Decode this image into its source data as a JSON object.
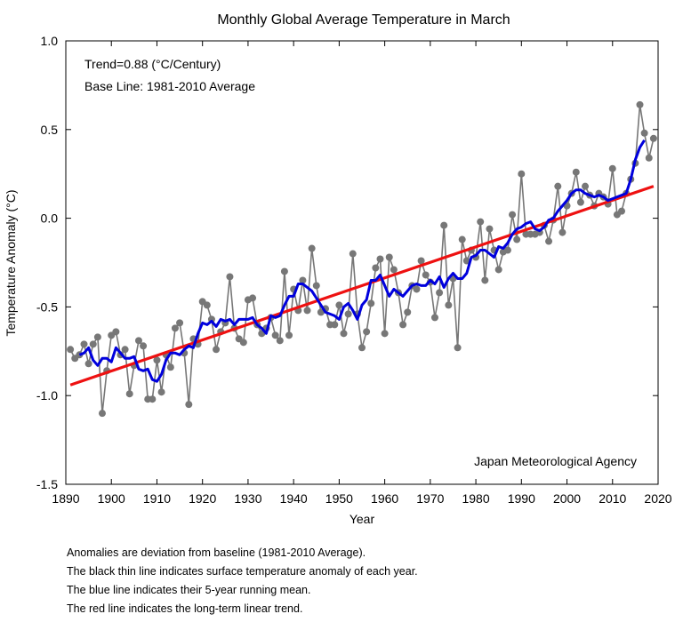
{
  "chart_data": {
    "type": "line",
    "title": "Monthly Global Average Temperature in March",
    "xlabel": "Year",
    "ylabel": "Temperature Anomaly (°C)",
    "xlim": [
      1890,
      2020
    ],
    "ylim": [
      -1.5,
      1.0
    ],
    "x_ticks": [
      "1890",
      "1900",
      "1910",
      "1920",
      "1930",
      "1940",
      "1950",
      "1960",
      "1970",
      "1980",
      "1990",
      "2000",
      "2010",
      "2020"
    ],
    "y_ticks": [
      "-1.5",
      "-1.0",
      "-0.5",
      "0.0",
      "0.5",
      "1.0"
    ],
    "grid": false,
    "annotations": {
      "trend": "Trend=0.88 (°C/Century)",
      "baseline": "Base Line: 1981-2010 Average",
      "source": "Japan Meteorological Agency"
    },
    "colors": {
      "annual": "#777777",
      "mean": "#0000dd",
      "trend": "#ee1111"
    },
    "series": [
      {
        "key": "annual",
        "x": [
          1891,
          1892,
          1893,
          1894,
          1895,
          1896,
          1897,
          1898,
          1899,
          1900,
          1901,
          1902,
          1903,
          1904,
          1905,
          1906,
          1907,
          1908,
          1909,
          1910,
          1911,
          1912,
          1913,
          1914,
          1915,
          1916,
          1917,
          1918,
          1919,
          1920,
          1921,
          1922,
          1923,
          1924,
          1925,
          1926,
          1927,
          1928,
          1929,
          1930,
          1931,
          1932,
          1933,
          1934,
          1935,
          1936,
          1937,
          1938,
          1939,
          1940,
          1941,
          1942,
          1943,
          1944,
          1945,
          1946,
          1947,
          1948,
          1949,
          1950,
          1951,
          1952,
          1953,
          1954,
          1955,
          1956,
          1957,
          1958,
          1959,
          1960,
          1961,
          1962,
          1963,
          1964,
          1965,
          1966,
          1967,
          1968,
          1969,
          1970,
          1971,
          1972,
          1973,
          1974,
          1975,
          1976,
          1977,
          1978,
          1979,
          1980,
          1981,
          1982,
          1983,
          1984,
          1985,
          1986,
          1987,
          1988,
          1989,
          1990,
          1991,
          1992,
          1993,
          1994,
          1995,
          1996,
          1997,
          1998,
          1999,
          2000,
          2001,
          2002,
          2003,
          2004,
          2005,
          2006,
          2007,
          2008,
          2009,
          2010,
          2011,
          2012,
          2013,
          2014,
          2015,
          2016,
          2017,
          2018,
          2019
        ],
        "y": [
          -0.74,
          -0.79,
          -0.77,
          -0.71,
          -0.82,
          -0.71,
          -0.67,
          -1.1,
          -0.86,
          -0.66,
          -0.64,
          -0.77,
          -0.74,
          -0.99,
          -0.83,
          -0.69,
          -0.72,
          -1.02,
          -1.02,
          -0.8,
          -0.98,
          -0.77,
          -0.84,
          -0.62,
          -0.59,
          -0.76,
          -1.05,
          -0.68,
          -0.71,
          -0.47,
          -0.49,
          -0.57,
          -0.74,
          -0.64,
          -0.59,
          -0.33,
          -0.62,
          -0.68,
          -0.7,
          -0.46,
          -0.45,
          -0.6,
          -0.65,
          -0.62,
          -0.56,
          -0.66,
          -0.69,
          -0.3,
          -0.66,
          -0.4,
          -0.52,
          -0.35,
          -0.52,
          -0.17,
          -0.38,
          -0.53,
          -0.51,
          -0.6,
          -0.6,
          -0.49,
          -0.65,
          -0.54,
          -0.2,
          -0.54,
          -0.73,
          -0.64,
          -0.48,
          -0.28,
          -0.23,
          -0.65,
          -0.22,
          -0.29,
          -0.42,
          -0.6,
          -0.53,
          -0.38,
          -0.4,
          -0.24,
          -0.32,
          -0.36,
          -0.56,
          -0.42,
          -0.04,
          -0.49,
          -0.34,
          -0.73,
          -0.12,
          -0.24,
          -0.18,
          -0.22,
          -0.02,
          -0.35,
          -0.06,
          -0.18,
          -0.29,
          -0.19,
          -0.18,
          0.02,
          -0.12,
          0.25,
          -0.09,
          -0.09,
          -0.09,
          -0.08,
          -0.04,
          -0.13,
          -0.01,
          0.18,
          -0.08,
          0.07,
          0.14,
          0.26,
          0.09,
          0.18,
          0.13,
          0.07,
          0.14,
          0.12,
          0.08,
          0.28,
          0.02,
          0.04,
          0.14,
          0.22,
          0.31,
          0.64,
          0.48,
          0.34,
          0.45
        ]
      },
      {
        "key": "mean",
        "x": [
          1893,
          1894,
          1895,
          1896,
          1897,
          1898,
          1899,
          1900,
          1901,
          1902,
          1903,
          1904,
          1905,
          1906,
          1907,
          1908,
          1909,
          1910,
          1911,
          1912,
          1913,
          1914,
          1915,
          1916,
          1917,
          1918,
          1919,
          1920,
          1921,
          1922,
          1923,
          1924,
          1925,
          1926,
          1927,
          1928,
          1929,
          1930,
          1931,
          1932,
          1933,
          1934,
          1935,
          1936,
          1937,
          1938,
          1939,
          1940,
          1941,
          1942,
          1943,
          1944,
          1945,
          1946,
          1947,
          1948,
          1949,
          1950,
          1951,
          1952,
          1953,
          1954,
          1955,
          1956,
          1957,
          1958,
          1959,
          1960,
          1961,
          1962,
          1963,
          1964,
          1965,
          1966,
          1967,
          1968,
          1969,
          1970,
          1971,
          1972,
          1973,
          1974,
          1975,
          1976,
          1977,
          1978,
          1979,
          1980,
          1981,
          1982,
          1983,
          1984,
          1985,
          1986,
          1987,
          1988,
          1989,
          1990,
          1991,
          1992,
          1993,
          1994,
          1995,
          1996,
          1997,
          1998,
          1999,
          2000,
          2001,
          2002,
          2003,
          2004,
          2005,
          2006,
          2007,
          2008,
          2009,
          2010,
          2011,
          2012,
          2013,
          2014,
          2015,
          2016,
          2017
        ],
        "y": [
          -0.77,
          -0.76,
          -0.73,
          -0.8,
          -0.83,
          -0.79,
          -0.79,
          -0.81,
          -0.73,
          -0.76,
          -0.79,
          -0.79,
          -0.78,
          -0.85,
          -0.86,
          -0.85,
          -0.91,
          -0.92,
          -0.88,
          -0.8,
          -0.76,
          -0.76,
          -0.77,
          -0.74,
          -0.72,
          -0.73,
          -0.65,
          -0.59,
          -0.6,
          -0.58,
          -0.61,
          -0.57,
          -0.58,
          -0.57,
          -0.6,
          -0.57,
          -0.57,
          -0.57,
          -0.56,
          -0.6,
          -0.62,
          -0.65,
          -0.55,
          -0.56,
          -0.55,
          -0.49,
          -0.44,
          -0.44,
          -0.37,
          -0.37,
          -0.39,
          -0.41,
          -0.45,
          -0.49,
          -0.53,
          -0.54,
          -0.55,
          -0.57,
          -0.5,
          -0.48,
          -0.52,
          -0.57,
          -0.49,
          -0.46,
          -0.35,
          -0.35,
          -0.32,
          -0.38,
          -0.44,
          -0.4,
          -0.42,
          -0.44,
          -0.41,
          -0.38,
          -0.37,
          -0.38,
          -0.38,
          -0.35,
          -0.37,
          -0.33,
          -0.39,
          -0.34,
          -0.31,
          -0.34,
          -0.34,
          -0.31,
          -0.22,
          -0.21,
          -0.18,
          -0.18,
          -0.2,
          -0.22,
          -0.16,
          -0.17,
          -0.14,
          -0.09,
          -0.06,
          -0.05,
          -0.03,
          -0.02,
          -0.06,
          -0.07,
          -0.05,
          -0.01,
          0.0,
          0.04,
          0.07,
          0.1,
          0.14,
          0.16,
          0.16,
          0.14,
          0.13,
          0.12,
          0.13,
          0.12,
          0.1,
          0.11,
          0.12,
          0.13,
          0.14,
          0.22,
          0.33,
          0.4,
          0.44
        ]
      }
    ],
    "trend_line": {
      "x": [
        1891,
        2019
      ],
      "y": [
        -0.94,
        0.18
      ]
    }
  },
  "notes": [
    "Anomalies are deviation from baseline (1981-2010 Average).",
    "The black thin line indicates surface temperature anomaly of each year.",
    "The blue line indicates their 5-year running mean.",
    "The red line indicates the long-term linear trend."
  ]
}
